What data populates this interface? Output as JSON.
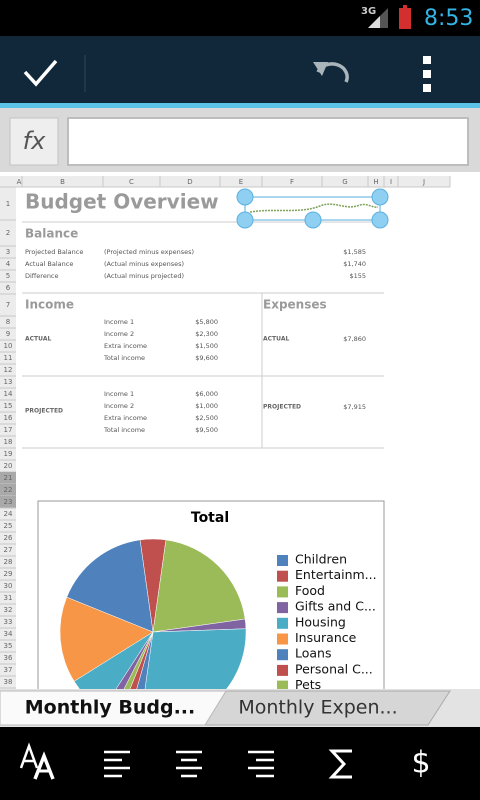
{
  "status_bar": {
    "network": "3G",
    "time": "8:53"
  },
  "formula_bar": {
    "label": "fx"
  },
  "sheet": {
    "columns": [
      "A",
      "B",
      "C",
      "D",
      "E",
      "F",
      "G",
      "H",
      "I",
      "J"
    ],
    "rows": [
      "1",
      "2",
      "3",
      "4",
      "5",
      "6",
      "7",
      "8",
      "9",
      "10",
      "11",
      "12",
      "13",
      "14",
      "15",
      "16",
      "17",
      "18",
      "19",
      "20",
      "21",
      "22",
      "23",
      "24",
      "25",
      "26",
      "27",
      "28",
      "29",
      "30",
      "31",
      "32",
      "33",
      "34",
      "35",
      "36",
      "37",
      "38"
    ],
    "title": "Budget Overview",
    "balance": {
      "heading": "Balance",
      "items": [
        {
          "label": "Projected Balance",
          "note": "(Projected  minus expenses)",
          "amount": "$1,585"
        },
        {
          "label": "Actual Balance",
          "note": "(Actual  minus expenses)",
          "amount": "$1,740"
        },
        {
          "label": "Difference",
          "note": "(Actual minus projected)",
          "amount": "$155"
        }
      ]
    },
    "income": {
      "heading": "Income",
      "actual": {
        "label": "ACTUAL",
        "lines": [
          {
            "label": "Income 1",
            "amount": "$5,800"
          },
          {
            "label": "Income 2",
            "amount": "$2,300"
          },
          {
            "label": "Extra income",
            "amount": "$1,500"
          },
          {
            "label": "Total income",
            "amount": "$9,600"
          }
        ]
      },
      "projected": {
        "label": "PROJECTED",
        "lines": [
          {
            "label": "Income 1",
            "amount": "$6,000"
          },
          {
            "label": "Income 2",
            "amount": "$1,000"
          },
          {
            "label": "Extra income",
            "amount": "$2,500"
          },
          {
            "label": "Total income",
            "amount": "$9,500"
          }
        ]
      }
    },
    "expenses": {
      "heading": "Expenses",
      "actual": {
        "label": "ACTUAL",
        "amount": "$7,860"
      },
      "projected": {
        "label": "PROJECTED",
        "amount": "$7,915"
      }
    },
    "chart": {
      "title": "Total",
      "legend": [
        {
          "label": "Children",
          "color": "#4f81bd"
        },
        {
          "label": "Entertainm...",
          "color": "#c0504d"
        },
        {
          "label": "Food",
          "color": "#9bbb59"
        },
        {
          "label": "Gifts and C...",
          "color": "#8064a2"
        },
        {
          "label": "Housing",
          "color": "#4bacc6"
        },
        {
          "label": "Insurance",
          "color": "#f79646"
        },
        {
          "label": "Loans",
          "color": "#4f81bd"
        },
        {
          "label": "Personal C...",
          "color": "#c0504d"
        },
        {
          "label": "Pets",
          "color": "#9bbb59"
        }
      ]
    }
  },
  "tabs": [
    "Monthly Budg...",
    "Monthly Expen..."
  ],
  "toolbar": {
    "currency": "$"
  }
}
